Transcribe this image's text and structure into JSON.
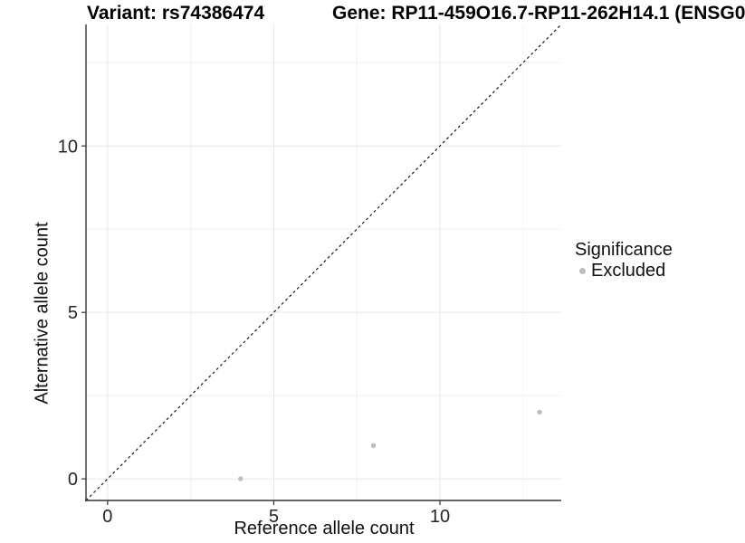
{
  "titles": {
    "variant": "Variant: rs74386474",
    "gene": "Gene: RP11-459O16.7-RP11-262H14.1 (ENSG0"
  },
  "chart_data": {
    "type": "scatter",
    "xlabel": "Reference allele count",
    "ylabel": "Alternative allele count",
    "xlim": [
      -0.65,
      13.65
    ],
    "ylim": [
      -0.65,
      13.65
    ],
    "x_major_ticks": [
      0,
      5,
      10
    ],
    "y_major_ticks": [
      0,
      5,
      10
    ],
    "x_minor_ticks": [
      2.5,
      7.5,
      12.5
    ],
    "y_minor_ticks": [
      2.5,
      7.5,
      12.5
    ],
    "grid": "major+minor",
    "identity_line": {
      "equation": "y = x",
      "style": "dashed",
      "color": "#1a1a1a"
    },
    "series": [
      {
        "name": "Excluded",
        "color": "#bebebe",
        "points": [
          {
            "x": 4,
            "y": 0
          },
          {
            "x": 8,
            "y": 1
          },
          {
            "x": 13,
            "y": 2
          }
        ]
      }
    ],
    "legend": {
      "title": "Significance",
      "position": "right",
      "items": [
        {
          "label": "Excluded",
          "color": "#bebebe"
        }
      ]
    },
    "colors": {
      "axis_line": "#333333",
      "major_grid": "#e6e6e6",
      "minor_grid": "#f2f2f2",
      "tick_label": "#262626"
    }
  }
}
